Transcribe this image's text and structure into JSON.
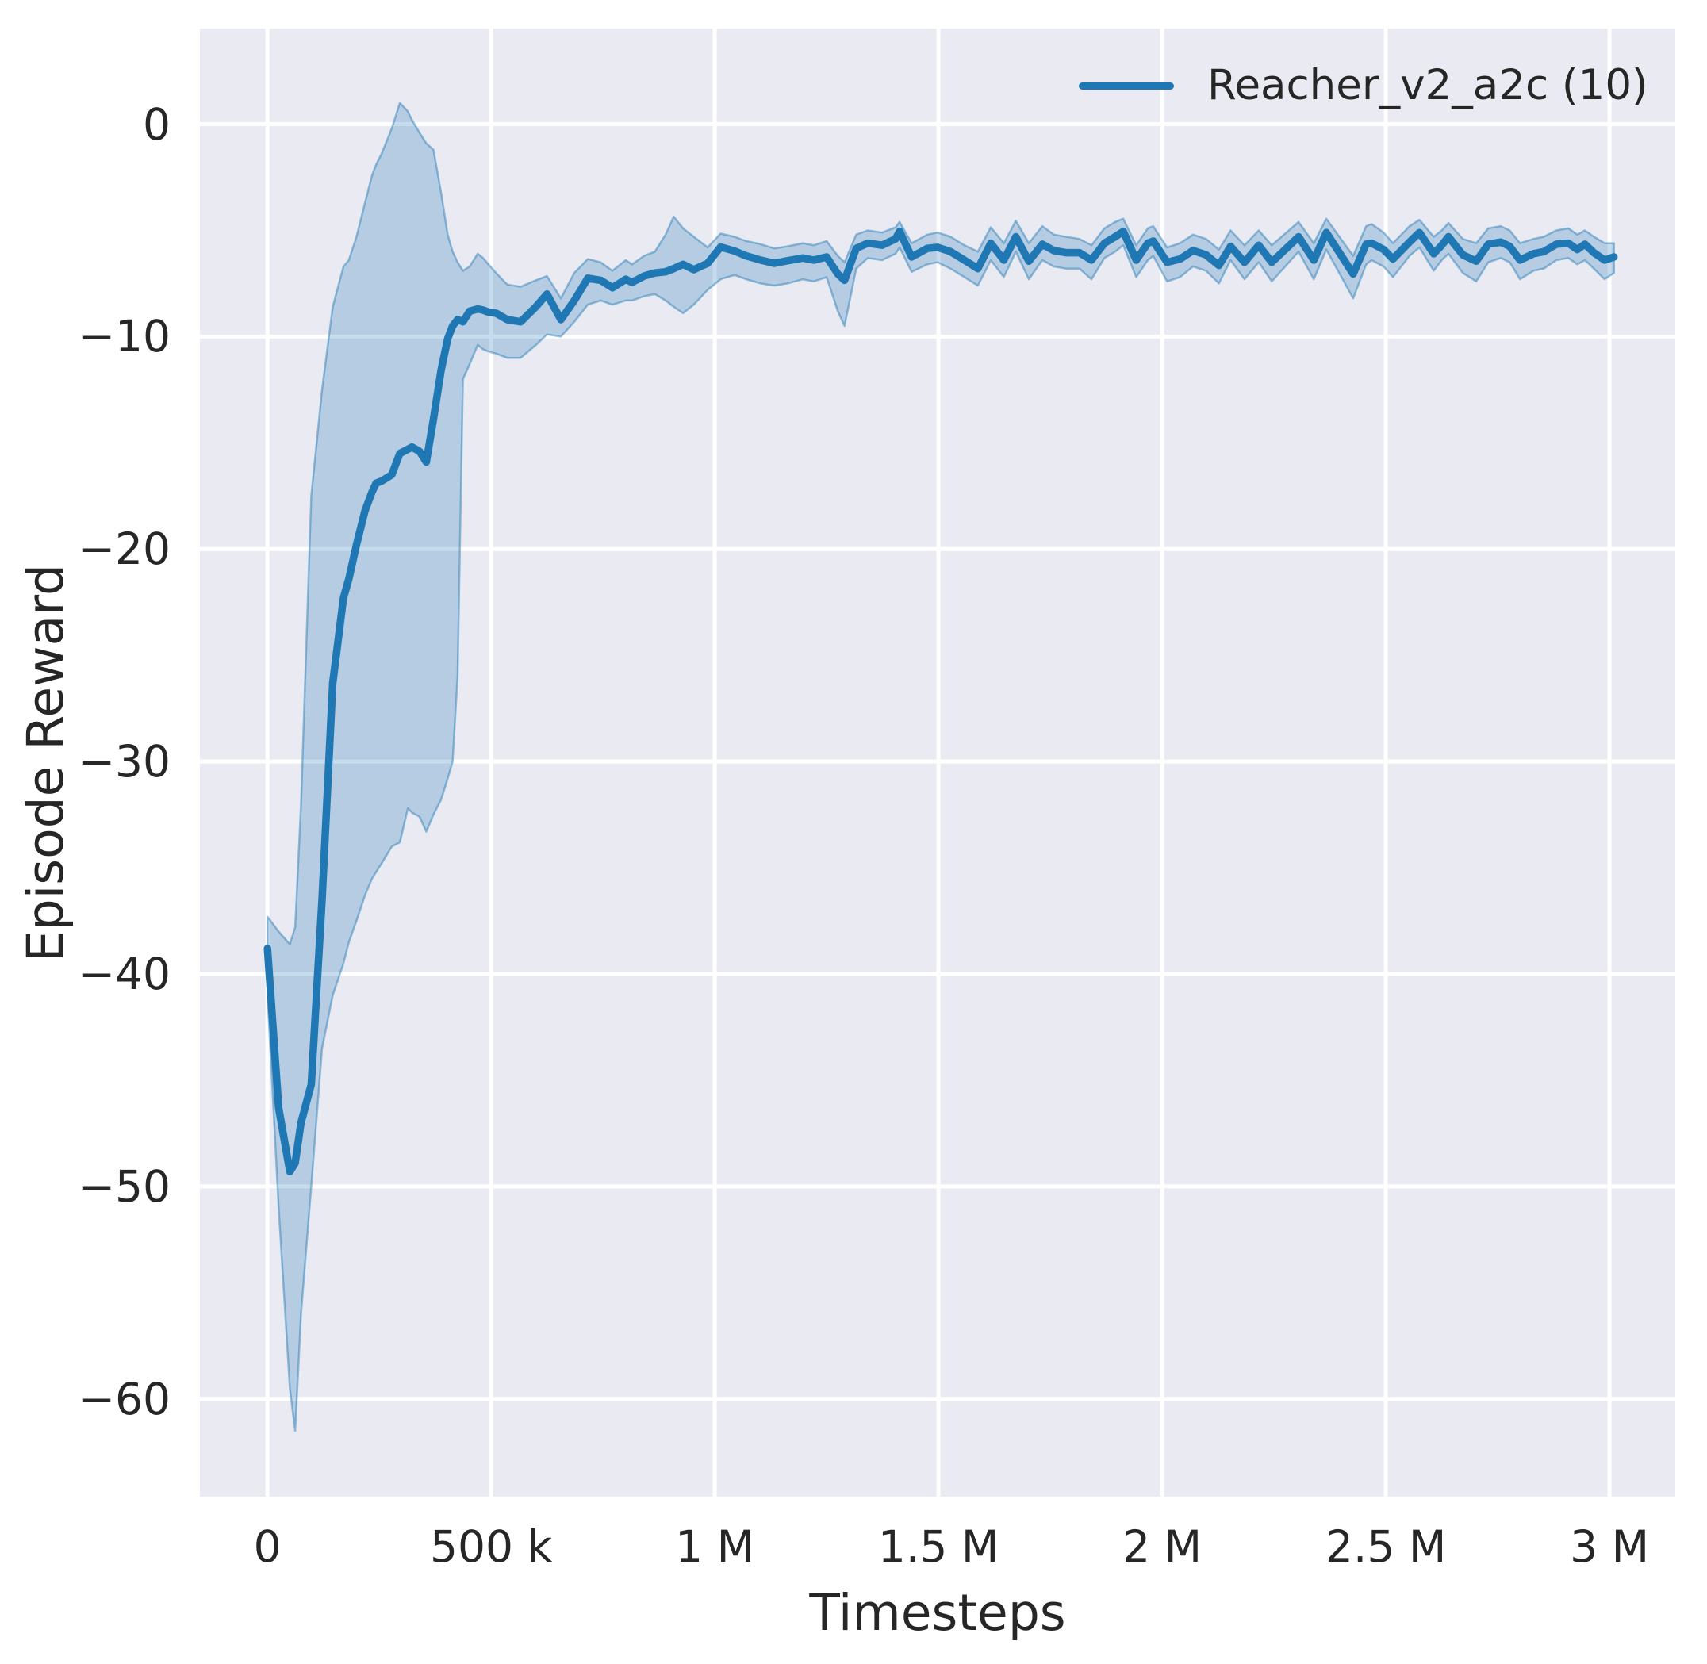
{
  "chart_data": {
    "type": "line",
    "title": "",
    "xlabel": "Timesteps",
    "ylabel": "Episode Reward",
    "grid": true,
    "xlim": [
      -151000,
      3147000
    ],
    "ylim": [
      -64.6,
      4.5
    ],
    "x_ticks": [
      {
        "value": 0,
        "label": "0"
      },
      {
        "value": 500000,
        "label": "500 k"
      },
      {
        "value": 1000000,
        "label": "1 M"
      },
      {
        "value": 1500000,
        "label": "1.5 M"
      },
      {
        "value": 2000000,
        "label": "2 M"
      },
      {
        "value": 2500000,
        "label": "2.5 M"
      },
      {
        "value": 3000000,
        "label": "3 M"
      }
    ],
    "y_ticks": [
      {
        "value": 0,
        "label": "0"
      },
      {
        "value": -10,
        "label": "−10"
      },
      {
        "value": -20,
        "label": "−20"
      },
      {
        "value": -30,
        "label": "−30"
      },
      {
        "value": -40,
        "label": "−40"
      },
      {
        "value": -50,
        "label": "−50"
      },
      {
        "value": -60,
        "label": "−60"
      }
    ],
    "legend": {
      "position": "upper right",
      "entries": [
        {
          "label": "Reacher_v2_a2c (10)",
          "color": "#1f77b4"
        }
      ]
    },
    "style": {
      "plot_background": "#eaeaf2",
      "grid_color": "#ffffff",
      "line_color": "#1f77b4",
      "band_fill": "rgba(31,119,180,0.26)",
      "band_edge": "rgba(31,119,180,0.45)",
      "text_color": "#262626"
    },
    "series": [
      {
        "name": "Reacher_v2_a2c (10)",
        "color": "#1f77b4",
        "x": [
          0,
          25000,
          50000,
          62000,
          75000,
          98000,
          122000,
          146000,
          170000,
          182000,
          199000,
          218000,
          234000,
          243000,
          255000,
          278000,
          296000,
          314000,
          323000,
          340000,
          355000,
          371000,
          388000,
          403000,
          414000,
          425000,
          437000,
          452000,
          470000,
          482000,
          494000,
          511000,
          536000,
          566000,
          600000,
          625000,
          656000,
          686000,
          716000,
          745000,
          771000,
          801000,
          815000,
          842000,
          866000,
          890000,
          908000,
          929000,
          953000,
          984000,
          1013000,
          1044000,
          1070000,
          1103000,
          1133000,
          1162000,
          1197000,
          1221000,
          1250000,
          1275000,
          1290000,
          1316000,
          1342000,
          1374000,
          1404000,
          1413000,
          1440000,
          1475000,
          1498000,
          1527000,
          1558000,
          1588000,
          1617000,
          1646000,
          1673000,
          1702000,
          1732000,
          1758000,
          1785000,
          1815000,
          1842000,
          1871000,
          1895000,
          1913000,
          1942000,
          1968000,
          1980000,
          2011000,
          2040000,
          2069000,
          2098000,
          2127000,
          2153000,
          2184000,
          2216000,
          2245000,
          2305000,
          2339000,
          2367000,
          2427000,
          2456000,
          2468000,
          2495000,
          2516000,
          2553000,
          2575000,
          2607000,
          2625000,
          2640000,
          2672000,
          2702000,
          2729000,
          2757000,
          2777000,
          2800000,
          2830000,
          2853000,
          2881000,
          2908000,
          2928000,
          2945000,
          2965000,
          2989000,
          3010000
        ],
        "mean": [
          -38.8,
          -46.3,
          -49.3,
          -48.9,
          -47,
          -45.2,
          -36.5,
          -26.3,
          -22.3,
          -21.4,
          -19.8,
          -18.2,
          -17.3,
          -16.9,
          -16.8,
          -16.5,
          -15.5,
          -15.3,
          -15.2,
          -15.4,
          -15.9,
          -13.9,
          -11.6,
          -10.1,
          -9.5,
          -9.2,
          -9.3,
          -8.8,
          -8.7,
          -8.75,
          -8.85,
          -8.9,
          -9.2,
          -9.3,
          -8.6,
          -8,
          -9.2,
          -8.3,
          -7.25,
          -7.35,
          -7.7,
          -7.3,
          -7.45,
          -7.15,
          -7,
          -6.95,
          -6.8,
          -6.6,
          -6.85,
          -6.55,
          -5.78,
          -5.97,
          -6.2,
          -6.4,
          -6.55,
          -6.43,
          -6.3,
          -6.4,
          -6.25,
          -7.05,
          -7.35,
          -5.85,
          -5.6,
          -5.7,
          -5.4,
          -5.05,
          -6.25,
          -5.85,
          -5.8,
          -6,
          -6.4,
          -6.8,
          -5.6,
          -6.4,
          -5.3,
          -6.45,
          -5.65,
          -5.95,
          -6.05,
          -6.05,
          -6.4,
          -5.6,
          -5.3,
          -5.05,
          -6.4,
          -5.6,
          -5.5,
          -6.5,
          -6.35,
          -5.95,
          -6.15,
          -6.65,
          -5.75,
          -6.5,
          -5.7,
          -6.5,
          -5.3,
          -6.4,
          -5.1,
          -7.05,
          -5.65,
          -5.6,
          -5.9,
          -6.35,
          -5.55,
          -5.1,
          -6.1,
          -5.7,
          -5.3,
          -6.15,
          -6.45,
          -5.65,
          -5.55,
          -5.75,
          -6.4,
          -6.1,
          -6,
          -5.65,
          -5.6,
          -5.9,
          -5.65,
          -6.05,
          -6.4,
          -6.25
        ],
        "lower": [
          -41,
          -51,
          -59.5,
          -61.5,
          -56,
          -50,
          -43.5,
          -41,
          -39.5,
          -38.5,
          -37.5,
          -36.3,
          -35.5,
          -35.2,
          -34.8,
          -34,
          -33.8,
          -32.2,
          -32.4,
          -32.6,
          -33.3,
          -32.5,
          -31.8,
          -30.8,
          -30,
          -26,
          -12,
          -11.3,
          -10.4,
          -10.6,
          -10.7,
          -10.8,
          -11,
          -11,
          -10.4,
          -9.9,
          -10,
          -9.3,
          -8.5,
          -8.3,
          -8.5,
          -8.3,
          -8.3,
          -8.1,
          -8,
          -8.3,
          -8.6,
          -8.9,
          -8.5,
          -7.8,
          -7.3,
          -7.1,
          -7.3,
          -7.5,
          -7.6,
          -7.5,
          -7.3,
          -7.4,
          -7.2,
          -8.8,
          -9.5,
          -6.8,
          -6.3,
          -6.4,
          -6.1,
          -5.8,
          -6.95,
          -6.6,
          -6.5,
          -6.8,
          -7.2,
          -7.6,
          -6.4,
          -7.2,
          -6,
          -7.3,
          -6.4,
          -6.7,
          -6.8,
          -6.8,
          -7.3,
          -6.3,
          -6,
          -5.7,
          -7.2,
          -6.4,
          -6.2,
          -7.4,
          -7.2,
          -6.7,
          -6.9,
          -7.5,
          -6.4,
          -7.3,
          -6.5,
          -7.4,
          -6,
          -7.3,
          -5.9,
          -8.2,
          -6.6,
          -6.4,
          -6.7,
          -7.2,
          -6.2,
          -5.8,
          -6.9,
          -6.4,
          -6.1,
          -7,
          -7.4,
          -6.5,
          -6.3,
          -6.5,
          -7.3,
          -6.9,
          -6.8,
          -6.4,
          -6.3,
          -6.6,
          -6.4,
          -6.8,
          -7.3,
          -7
        ],
        "upper": [
          -37.3,
          -38,
          -38.6,
          -37.8,
          -32,
          -17.5,
          -12.5,
          -8.6,
          -6.7,
          -6.4,
          -5.3,
          -3.7,
          -2.4,
          -1.9,
          -1.4,
          -0.2,
          1,
          0.6,
          0.2,
          -0.4,
          -0.9,
          -1.2,
          -3.2,
          -5.2,
          -6,
          -6.5,
          -6.9,
          -6.7,
          -6.1,
          -6.3,
          -6.6,
          -7,
          -7.55,
          -7.65,
          -7.35,
          -7.15,
          -8.2,
          -7,
          -6.35,
          -6.5,
          -6.9,
          -6.4,
          -6.6,
          -6.2,
          -6,
          -5.2,
          -4.35,
          -4.9,
          -5.3,
          -5.8,
          -5.15,
          -5.3,
          -5.5,
          -5.65,
          -5.85,
          -5.75,
          -5.6,
          -5.7,
          -5.5,
          -6.2,
          -6.5,
          -5.2,
          -5,
          -5.1,
          -4.85,
          -4.6,
          -5.6,
          -5.2,
          -5.1,
          -5.3,
          -5.7,
          -6,
          -4.85,
          -5.6,
          -4.55,
          -5.6,
          -4.8,
          -5.2,
          -5.3,
          -5.4,
          -5.7,
          -4.9,
          -4.6,
          -4.45,
          -5.7,
          -4.9,
          -4.8,
          -5.8,
          -5.6,
          -5.2,
          -5.4,
          -5.9,
          -5,
          -5.7,
          -5,
          -5.7,
          -4.6,
          -5.6,
          -4.45,
          -6.2,
          -4.8,
          -4.7,
          -5.1,
          -5.6,
          -4.8,
          -4.5,
          -5.3,
          -5,
          -4.65,
          -5.4,
          -5.6,
          -4.9,
          -4.8,
          -5,
          -5.6,
          -5.4,
          -5.3,
          -5,
          -4.9,
          -5.2,
          -5,
          -5.3,
          -5.6,
          -5.6
        ]
      }
    ]
  }
}
